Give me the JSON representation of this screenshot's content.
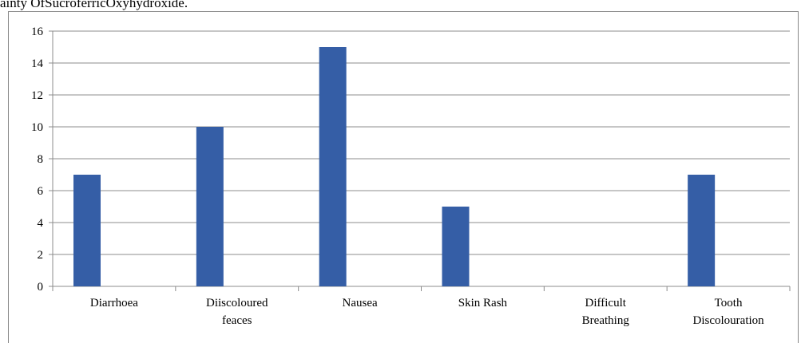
{
  "caption_fragment": "ainty OfSucroferricOxyhydroxide.",
  "chart_data": {
    "type": "bar",
    "categories": [
      [
        "Diarrhoea"
      ],
      [
        "Diiscoloured",
        "feaces"
      ],
      [
        "Nausea"
      ],
      [
        "Skin Rash"
      ],
      [
        "Difficult",
        "Breathing"
      ],
      [
        "Tooth",
        "Discolouration"
      ]
    ],
    "values": [
      7,
      10,
      15,
      5,
      0,
      7
    ],
    "ylim": [
      0,
      16
    ],
    "yticks": [
      0,
      2,
      4,
      6,
      8,
      10,
      12,
      14,
      16
    ],
    "grid": true,
    "bar_color": "#355ea6",
    "grid_color": "#8c8c8c"
  }
}
